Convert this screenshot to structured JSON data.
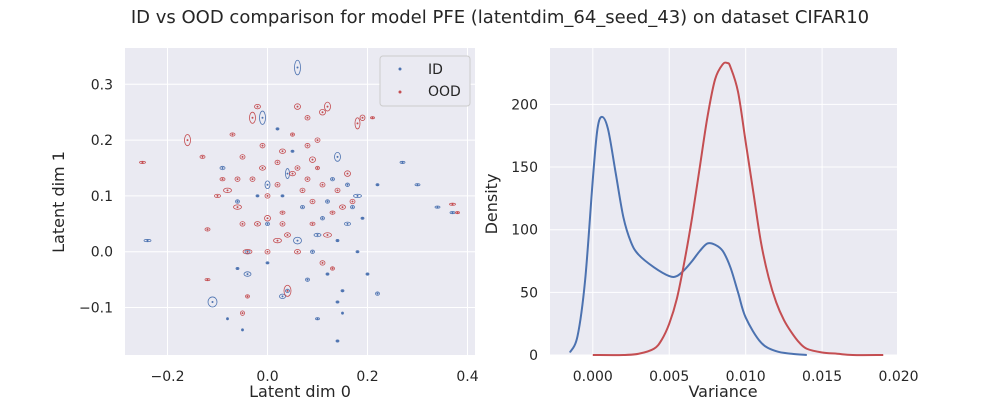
{
  "figure": {
    "title": "ID vs OOD comparison for model PFE (latentdim_64_seed_43) on dataset CIFAR10"
  },
  "colors": {
    "id": "#4c72b0",
    "ood": "#c44e52",
    "panel_bg": "#eaeaf2",
    "grid": "#ffffff"
  },
  "chart_data": [
    {
      "type": "scatter",
      "xlabel": "Latent dim 0",
      "ylabel": "Latent dim 1",
      "xlim": [
        -0.285,
        0.415
      ],
      "ylim": [
        -0.185,
        0.365
      ],
      "xticks": [
        -0.2,
        0.0,
        0.2,
        0.4
      ],
      "xtick_labels": [
        "−0.2",
        "0.0",
        "0.2",
        "0.4"
      ],
      "yticks": [
        -0.1,
        0.0,
        0.1,
        0.2,
        0.3
      ],
      "ytick_labels": [
        "−0.1",
        "0.0",
        "0.1",
        "0.2",
        "0.3"
      ],
      "grid": true,
      "legend": {
        "position": "top-right",
        "entries": [
          "ID",
          "OOD"
        ]
      },
      "marker": "ellipse (point with uncertainty ellipse)",
      "series": [
        {
          "name": "ID",
          "points": [
            [
              0.06,
              0.33,
              0.006,
              0.013
            ],
            [
              -0.01,
              0.24,
              0.006,
              0.012
            ],
            [
              0.14,
              0.17,
              0.006,
              0.008
            ],
            [
              0.04,
              0.14,
              0.004,
              0.009
            ],
            [
              0.0,
              0.12,
              0.005,
              0.007
            ],
            [
              -0.24,
              0.02,
              0.007,
              0.002
            ],
            [
              -0.11,
              -0.09,
              0.009,
              0.009
            ],
            [
              0.03,
              -0.08,
              0.006,
              0.004
            ],
            [
              0.04,
              -0.07,
              0.004,
              0.003
            ],
            [
              0.1,
              -0.12,
              0.004,
              0.002
            ],
            [
              0.14,
              -0.16,
              0.003,
              0.002
            ],
            [
              0.22,
              -0.075,
              0.004,
              0.003
            ],
            [
              0.27,
              0.16,
              0.005,
              0.002
            ],
            [
              0.3,
              0.12,
              0.005,
              0.002
            ],
            [
              0.34,
              0.08,
              0.005,
              0.002
            ],
            [
              0.37,
              0.07,
              0.005,
              0.002
            ],
            [
              0.18,
              0.1,
              0.008,
              0.003
            ],
            [
              0.16,
              0.05,
              0.006,
              0.003
            ],
            [
              0.1,
              0.03,
              0.007,
              0.003
            ],
            [
              0.06,
              0.02,
              0.008,
              0.006
            ],
            [
              -0.04,
              -0.04,
              0.007,
              0.004
            ],
            [
              0.14,
              -0.09,
              0.003,
              0.002
            ],
            [
              0.15,
              -0.07,
              0.003,
              0.002
            ],
            [
              -0.09,
              0.15,
              0.005,
              0.003
            ],
            [
              -0.04,
              0.0,
              0.005,
              0.003
            ],
            [
              0.02,
              0.22,
              0.003,
              0.002
            ],
            [
              0.12,
              0.09,
              0.004,
              0.003
            ],
            [
              0.2,
              -0.04,
              0.003,
              0.002
            ],
            [
              0.08,
              -0.05,
              0.004,
              0.003
            ],
            [
              0.13,
              0.13,
              0.004,
              0.003
            ],
            [
              0.0,
              0.05,
              0.004,
              0.003
            ],
            [
              -0.06,
              0.09,
              0.004,
              0.003
            ],
            [
              0.09,
              0.0,
              0.004,
              0.003
            ],
            [
              0.16,
              0.12,
              0.004,
              0.003
            ],
            [
              0.22,
              0.12,
              0.003,
              0.002
            ],
            [
              0.18,
              0.0,
              0.003,
              0.002
            ],
            [
              -0.08,
              -0.12,
              0.002,
              0.002
            ],
            [
              -0.05,
              -0.14,
              0.002,
              0.002
            ],
            [
              0.15,
              -0.11,
              0.002,
              0.002
            ],
            [
              0.05,
              0.18,
              0.003,
              0.002
            ],
            [
              0.11,
              0.06,
              0.004,
              0.003
            ],
            [
              -0.02,
              0.1,
              0.003,
              0.002
            ],
            [
              0.07,
              0.08,
              0.004,
              0.003
            ],
            [
              0.17,
              0.08,
              0.004,
              0.003
            ],
            [
              0.0,
              -0.02,
              0.003,
              0.002
            ],
            [
              0.12,
              -0.04,
              0.003,
              0.002
            ],
            [
              -0.06,
              -0.03,
              0.003,
              0.002
            ],
            [
              0.03,
              0.1,
              0.003,
              0.002
            ],
            [
              0.19,
              0.06,
              0.003,
              0.002
            ],
            [
              0.14,
              0.02,
              0.003,
              0.002
            ]
          ]
        },
        {
          "name": "OOD",
          "points": [
            [
              -0.16,
              0.2,
              0.006,
              0.01
            ],
            [
              -0.25,
              0.16,
              0.006,
              0.002
            ],
            [
              -0.13,
              0.17,
              0.005,
              0.003
            ],
            [
              -0.03,
              0.24,
              0.006,
              0.01
            ],
            [
              -0.02,
              0.26,
              0.006,
              0.004
            ],
            [
              0.06,
              0.26,
              0.006,
              0.005
            ],
            [
              0.11,
              0.25,
              0.006,
              0.005
            ],
            [
              0.12,
              0.26,
              0.006,
              0.008
            ],
            [
              0.08,
              0.24,
              0.005,
              0.004
            ],
            [
              0.19,
              0.24,
              0.005,
              0.005
            ],
            [
              0.18,
              0.23,
              0.005,
              0.01
            ],
            [
              0.21,
              0.24,
              0.004,
              0.002
            ],
            [
              0.1,
              0.2,
              0.005,
              0.004
            ],
            [
              0.03,
              0.18,
              0.006,
              0.004
            ],
            [
              0.09,
              0.165,
              0.006,
              0.005
            ],
            [
              -0.05,
              0.17,
              0.005,
              0.004
            ],
            [
              -0.08,
              0.11,
              0.008,
              0.004
            ],
            [
              -0.06,
              0.08,
              0.008,
              0.004
            ],
            [
              -0.1,
              0.1,
              0.006,
              0.003
            ],
            [
              -0.12,
              0.04,
              0.005,
              0.003
            ],
            [
              -0.12,
              -0.05,
              0.005,
              0.002
            ],
            [
              -0.05,
              -0.11,
              0.004,
              0.004
            ],
            [
              -0.04,
              0.0,
              0.009,
              0.004
            ],
            [
              0.04,
              -0.07,
              0.007,
              0.01
            ],
            [
              0.06,
              0.0,
              0.006,
              0.004
            ],
            [
              0.02,
              0.02,
              0.008,
              0.004
            ],
            [
              0.03,
              0.07,
              0.005,
              0.003
            ],
            [
              0.09,
              0.05,
              0.005,
              0.003
            ],
            [
              0.12,
              0.03,
              0.008,
              0.004
            ],
            [
              0.15,
              0.08,
              0.006,
              0.004
            ],
            [
              0.13,
              0.07,
              0.005,
              0.003
            ],
            [
              0.11,
              -0.02,
              0.005,
              0.004
            ],
            [
              0.0,
              0.06,
              0.006,
              0.005
            ],
            [
              -0.01,
              0.15,
              0.006,
              0.004
            ],
            [
              0.05,
              0.14,
              0.006,
              0.004
            ],
            [
              0.07,
              0.11,
              0.005,
              0.004
            ],
            [
              0.08,
              0.13,
              0.005,
              0.004
            ],
            [
              0.0,
              0.1,
              0.005,
              0.004
            ],
            [
              -0.03,
              0.13,
              0.005,
              0.004
            ],
            [
              0.37,
              0.085,
              0.006,
              0.002
            ],
            [
              0.38,
              0.07,
              0.004,
              0.002
            ],
            [
              0.17,
              0.09,
              0.005,
              0.004
            ],
            [
              0.16,
              0.14,
              0.006,
              0.005
            ],
            [
              0.02,
              0.12,
              0.005,
              0.004
            ],
            [
              -0.07,
              0.21,
              0.005,
              0.003
            ],
            [
              -0.02,
              0.05,
              0.006,
              0.004
            ],
            [
              0.04,
              0.03,
              0.006,
              0.004
            ],
            [
              -0.04,
              -0.08,
              0.004,
              0.003
            ],
            [
              0.05,
              0.21,
              0.004,
              0.003
            ],
            [
              0.1,
              0.15,
              0.004,
              0.003
            ],
            [
              0.14,
              0.11,
              0.005,
              0.004
            ],
            [
              -0.05,
              0.05,
              0.005,
              0.004
            ],
            [
              0.08,
              0.19,
              0.005,
              0.004
            ],
            [
              -0.09,
              0.13,
              0.005,
              0.003
            ],
            [
              0.03,
              0.05,
              0.005,
              0.004
            ],
            [
              0.09,
              0.09,
              0.005,
              0.004
            ],
            [
              0.06,
              0.15,
              0.005,
              0.004
            ],
            [
              -0.06,
              0.13,
              0.005,
              0.004
            ],
            [
              0.13,
              -0.03,
              0.004,
              0.003
            ],
            [
              0.0,
              0.0,
              0.005,
              0.004
            ],
            [
              0.11,
              0.12,
              0.005,
              0.004
            ],
            [
              0.02,
              0.16,
              0.005,
              0.004
            ],
            [
              -0.01,
              0.19,
              0.005,
              0.004
            ]
          ]
        }
      ]
    },
    {
      "type": "line",
      "xlabel": "Variance",
      "ylabel": "Density",
      "xlim": [
        -0.0028,
        0.0199
      ],
      "ylim": [
        0,
        245
      ],
      "xticks": [
        0.0,
        0.005,
        0.01,
        0.015,
        0.02
      ],
      "xtick_labels": [
        "0.000",
        "0.005",
        "0.010",
        "0.015",
        "0.020"
      ],
      "yticks": [
        0,
        50,
        100,
        150,
        200
      ],
      "ytick_labels": [
        "0",
        "50",
        "100",
        "150",
        "200"
      ],
      "grid": true,
      "series": [
        {
          "name": "ID",
          "x": [
            -0.0015,
            -0.001,
            -0.0005,
            0.0,
            0.0003,
            0.0006,
            0.001,
            0.0015,
            0.002,
            0.0025,
            0.003,
            0.004,
            0.005,
            0.0055,
            0.006,
            0.0065,
            0.007,
            0.0075,
            0.008,
            0.0085,
            0.009,
            0.0095,
            0.01,
            0.011,
            0.012,
            0.013,
            0.014
          ],
          "y": [
            2,
            15,
            60,
            140,
            180,
            190,
            180,
            145,
            110,
            90,
            80,
            70,
            63,
            63,
            68,
            75,
            83,
            89,
            88,
            83,
            70,
            50,
            30,
            10,
            3,
            1,
            0
          ]
        },
        {
          "name": "OOD",
          "x": [
            0.0,
            0.002,
            0.003,
            0.004,
            0.0045,
            0.005,
            0.0055,
            0.006,
            0.0065,
            0.007,
            0.0075,
            0.008,
            0.0085,
            0.0088,
            0.009,
            0.0095,
            0.01,
            0.0105,
            0.011,
            0.0115,
            0.012,
            0.0125,
            0.013,
            0.0135,
            0.014,
            0.015,
            0.016,
            0.017,
            0.019
          ],
          "y": [
            0,
            0,
            1,
            5,
            12,
            25,
            45,
            75,
            110,
            150,
            190,
            220,
            232,
            233,
            230,
            210,
            170,
            130,
            90,
            62,
            42,
            28,
            18,
            10,
            5,
            2,
            1,
            0,
            0
          ]
        }
      ]
    }
  ]
}
